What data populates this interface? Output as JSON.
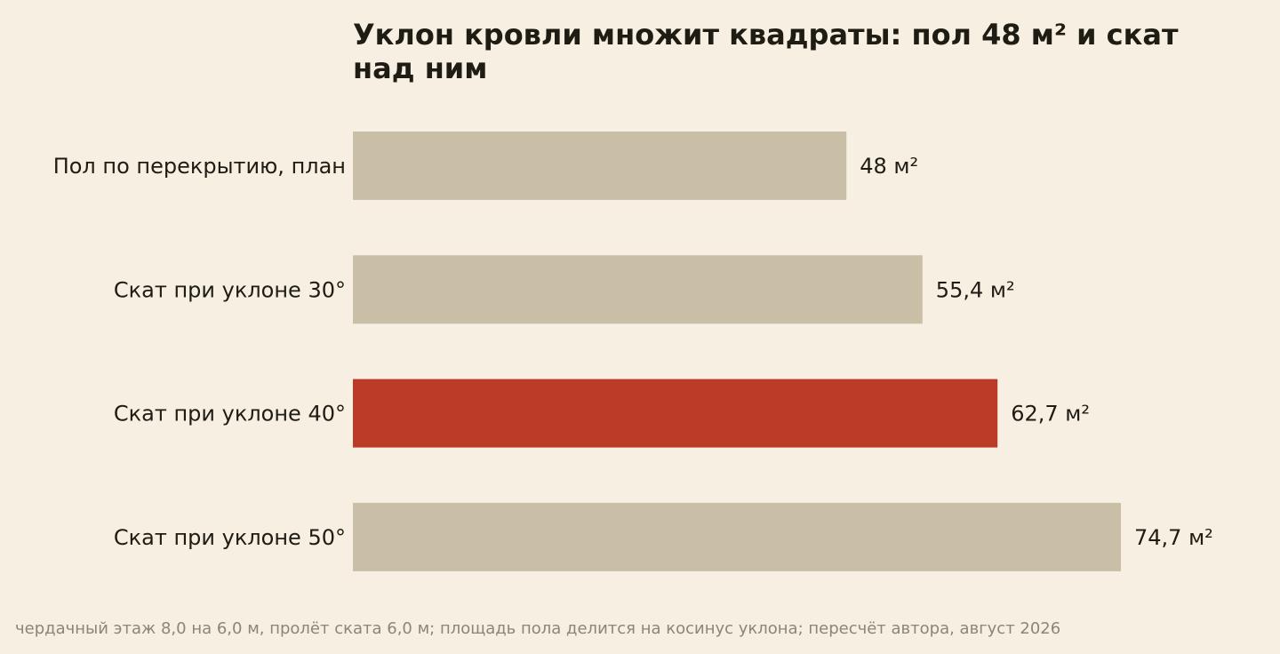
{
  "chart_data": {
    "type": "bar",
    "orientation": "horizontal",
    "title": "Уклон кровли множит квадраты: пол 48 м² и скат над ним",
    "categories": [
      "Пол по перекрытию, план",
      "Скат при уклоне 30°",
      "Скат при уклоне 40°",
      "Скат при уклоне 50°"
    ],
    "values": [
      48,
      55.4,
      62.7,
      74.7
    ],
    "value_labels": [
      "48 м²",
      "55,4 м²",
      "62,7 м²",
      "74,7 м²"
    ],
    "unit": "м²",
    "highlight_index": 2,
    "colors": {
      "bar": "#c9bfa7",
      "highlight": "#bb3b27",
      "background": "#f6efe2",
      "text": "#1f1c14",
      "footnote": "#8b857a"
    },
    "xlabel": "",
    "ylabel": "",
    "grid": false,
    "axis_visible": false,
    "legend": "none",
    "footnote": "чердачный этаж 8,0 на 6,0 м, пролёт ската 6,0 м; площадь пола делится на косинус уклона; пересчёт автора, август 2026"
  }
}
